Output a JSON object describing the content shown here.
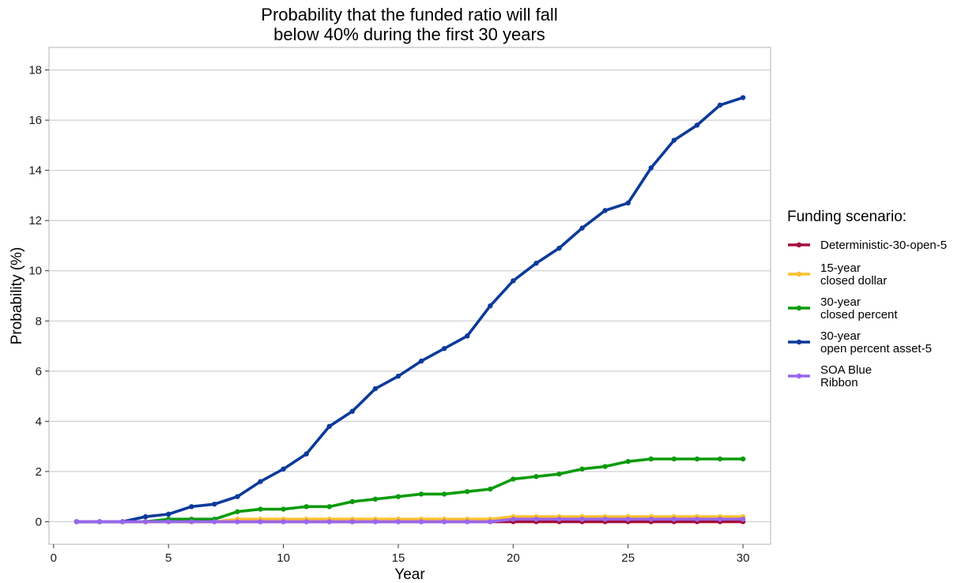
{
  "chart_data": {
    "type": "line",
    "title": [
      "Probability that the funded ratio will fall",
      "below 40% during the first 30 years"
    ],
    "xlabel": "Year",
    "ylabel": "Probability (%)",
    "xlim": [
      -0.2,
      31.2
    ],
    "ylim": [
      -0.9,
      18.9
    ],
    "xticks": [
      0,
      5,
      10,
      15,
      20,
      25,
      30
    ],
    "yticks": [
      0,
      2,
      4,
      6,
      8,
      10,
      12,
      14,
      16,
      18
    ],
    "grid": "horizontal",
    "legend": {
      "title": "Funding scenario:",
      "placement": "right"
    },
    "x": [
      1,
      2,
      3,
      4,
      5,
      6,
      7,
      8,
      9,
      10,
      11,
      12,
      13,
      14,
      15,
      16,
      17,
      18,
      19,
      20,
      21,
      22,
      23,
      24,
      25,
      26,
      27,
      28,
      29,
      30
    ],
    "series": [
      {
        "name": [
          "Deterministic-30-open-5"
        ],
        "color": "#a50f3b",
        "values": [
          0,
          0,
          0,
          0,
          0,
          0,
          0,
          0,
          0,
          0,
          0,
          0,
          0,
          0,
          0,
          0,
          0,
          0,
          0,
          0,
          0,
          0,
          0,
          0,
          0,
          0,
          0,
          0,
          0,
          0
        ]
      },
      {
        "name": [
          "15-year",
          "closed dollar"
        ],
        "color": "#fdbf2d",
        "values": [
          0,
          0,
          0,
          0,
          0,
          0,
          0,
          0.1,
          0.1,
          0.1,
          0.1,
          0.1,
          0.1,
          0.1,
          0.1,
          0.1,
          0.1,
          0.1,
          0.1,
          0.2,
          0.2,
          0.2,
          0.2,
          0.2,
          0.2,
          0.2,
          0.2,
          0.2,
          0.2,
          0.2
        ]
      },
      {
        "name": [
          "30-year",
          "closed percent"
        ],
        "color": "#0b9b0b",
        "values": [
          0,
          0,
          0,
          0,
          0.1,
          0.1,
          0.1,
          0.4,
          0.5,
          0.5,
          0.6,
          0.6,
          0.8,
          0.9,
          1.0,
          1.1,
          1.1,
          1.2,
          1.3,
          1.7,
          1.8,
          1.9,
          2.1,
          2.2,
          2.4,
          2.5,
          2.5,
          2.5,
          2.5,
          2.5
        ]
      },
      {
        "name": [
          "30-year",
          "open percent asset-5"
        ],
        "color": "#0c3a9a",
        "values": [
          0,
          0,
          0,
          0.2,
          0.3,
          0.6,
          0.7,
          1.0,
          1.6,
          2.1,
          2.7,
          3.8,
          4.4,
          5.3,
          5.8,
          6.4,
          6.9,
          7.4,
          8.6,
          9.6,
          10.3,
          10.9,
          11.7,
          12.4,
          12.7,
          14.1,
          15.2,
          15.8,
          16.6,
          16.9
        ]
      },
      {
        "name": [
          "SOA Blue",
          "Ribbon"
        ],
        "color": "#9966ee",
        "values": [
          0,
          0,
          0,
          0,
          0,
          0,
          0,
          0,
          0,
          0,
          0,
          0,
          0,
          0,
          0,
          0,
          0,
          0,
          0,
          0.1,
          0.1,
          0.1,
          0.1,
          0.1,
          0.1,
          0.1,
          0.1,
          0.1,
          0.1,
          0.1
        ]
      }
    ]
  }
}
